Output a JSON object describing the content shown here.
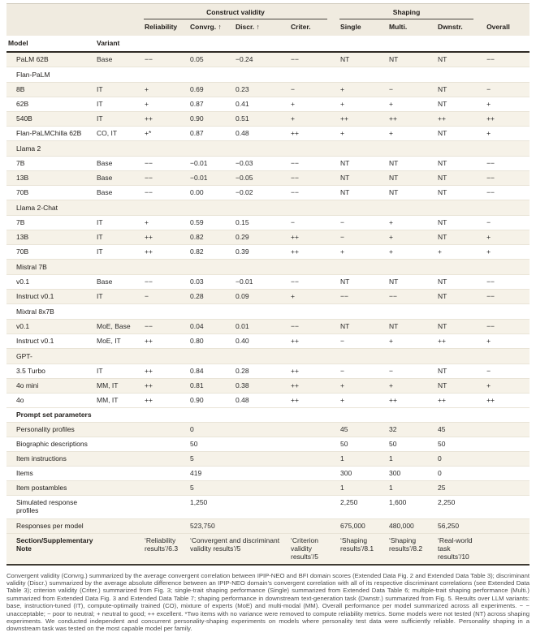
{
  "header": {
    "construct_validity": "Construct validity",
    "shaping": "Shaping",
    "model": "Model",
    "variant": "Variant",
    "cols": [
      "Reliability",
      "Convrg. ↑",
      "Discr. ↑",
      "Criter.",
      "Single",
      "Multi.",
      "Dwnstr.",
      "Overall"
    ]
  },
  "rows": [
    {
      "kind": "data",
      "shaded": true,
      "model": "PaLM 62B",
      "variant": "Base",
      "values": [
        "−−",
        "0.05",
        "−0.24",
        "−−",
        "NT",
        "NT",
        "NT",
        "−−"
      ]
    },
    {
      "kind": "group",
      "shaded": false,
      "label": "Flan-PaLM"
    },
    {
      "kind": "data",
      "shaded": true,
      "model": "8B",
      "variant": "IT",
      "values": [
        "+",
        "0.69",
        "0.23",
        "−",
        "+",
        "−",
        "NT",
        "−"
      ]
    },
    {
      "kind": "data",
      "shaded": false,
      "model": "62B",
      "variant": "IT",
      "values": [
        "+",
        "0.87",
        "0.41",
        "+",
        "+",
        "+",
        "NT",
        "+"
      ]
    },
    {
      "kind": "data",
      "shaded": true,
      "model": "540B",
      "variant": "IT",
      "values": [
        "++",
        "0.90",
        "0.51",
        "+",
        "++",
        "++",
        "++",
        "++"
      ]
    },
    {
      "kind": "data",
      "shaded": false,
      "model": "Flan-PaLMChilla 62B",
      "variant": "CO, IT",
      "values": [
        "+*",
        "0.87",
        "0.48",
        "++",
        "+",
        "+",
        "NT",
        "+"
      ]
    },
    {
      "kind": "group",
      "shaded": true,
      "label": "Llama 2"
    },
    {
      "kind": "data",
      "shaded": false,
      "model": "7B",
      "variant": "Base",
      "values": [
        "−−",
        "−0.01",
        "−0.03",
        "−−",
        "NT",
        "NT",
        "NT",
        "−−"
      ]
    },
    {
      "kind": "data",
      "shaded": true,
      "model": "13B",
      "variant": "Base",
      "values": [
        "−−",
        "−0.01",
        "−0.05",
        "−−",
        "NT",
        "NT",
        "NT",
        "−−"
      ]
    },
    {
      "kind": "data",
      "shaded": false,
      "model": "70B",
      "variant": "Base",
      "values": [
        "−−",
        "0.00",
        "−0.02",
        "−−",
        "NT",
        "NT",
        "NT",
        "−−"
      ]
    },
    {
      "kind": "group",
      "shaded": true,
      "label": "Llama 2-Chat"
    },
    {
      "kind": "data",
      "shaded": false,
      "model": "7B",
      "variant": "IT",
      "values": [
        "+",
        "0.59",
        "0.15",
        "−",
        "−",
        "+",
        "NT",
        "−"
      ]
    },
    {
      "kind": "data",
      "shaded": true,
      "model": "13B",
      "variant": "IT",
      "values": [
        "++",
        "0.82",
        "0.29",
        "++",
        "−",
        "+",
        "NT",
        "+"
      ]
    },
    {
      "kind": "data",
      "shaded": false,
      "model": "70B",
      "variant": "IT",
      "values": [
        "++",
        "0.82",
        "0.39",
        "++",
        "+",
        "+",
        "+",
        "+"
      ]
    },
    {
      "kind": "group",
      "shaded": true,
      "label": "Mistral 7B"
    },
    {
      "kind": "data",
      "shaded": false,
      "model": "v0.1",
      "variant": "Base",
      "values": [
        "−−",
        "0.03",
        "−0.01",
        "−−",
        "NT",
        "NT",
        "NT",
        "−−"
      ]
    },
    {
      "kind": "data",
      "shaded": true,
      "model": "Instruct v0.1",
      "variant": "IT",
      "values": [
        "−",
        "0.28",
        "0.09",
        "+",
        "−−",
        "−−",
        "NT",
        "−−"
      ]
    },
    {
      "kind": "group",
      "shaded": false,
      "label": "Mixtral 8x7B"
    },
    {
      "kind": "data",
      "shaded": true,
      "model": "v0.1",
      "variant": "MoE, Base",
      "values": [
        "−−",
        "0.04",
        "0.01",
        "−−",
        "NT",
        "NT",
        "NT",
        "−−"
      ]
    },
    {
      "kind": "data",
      "shaded": false,
      "model": "Instruct v0.1",
      "variant": "MoE, IT",
      "values": [
        "++",
        "0.80",
        "0.40",
        "++",
        "−",
        "+",
        "++",
        "+"
      ]
    },
    {
      "kind": "group",
      "shaded": true,
      "label": "GPT-"
    },
    {
      "kind": "data",
      "shaded": false,
      "model": "3.5 Turbo",
      "variant": "IT",
      "values": [
        "++",
        "0.84",
        "0.28",
        "++",
        "−",
        "−",
        "NT",
        "−"
      ]
    },
    {
      "kind": "data",
      "shaded": true,
      "model": "4o mini",
      "variant": "MM, IT",
      "values": [
        "++",
        "0.81",
        "0.38",
        "++",
        "+",
        "+",
        "NT",
        "+"
      ]
    },
    {
      "kind": "data",
      "shaded": false,
      "model": "4o",
      "variant": "MM, IT",
      "values": [
        "++",
        "0.90",
        "0.48",
        "++",
        "+",
        "++",
        "++",
        "++"
      ]
    },
    {
      "kind": "section",
      "shaded": false,
      "label": "Prompt set parameters"
    },
    {
      "kind": "params",
      "shaded": true,
      "label": "Personality profiles",
      "values": [
        "0",
        "45",
        "32",
        "45"
      ]
    },
    {
      "kind": "params",
      "shaded": false,
      "label": "Biographic descriptions",
      "values": [
        "50",
        "50",
        "50",
        "50"
      ]
    },
    {
      "kind": "params",
      "shaded": true,
      "label": "Item instructions",
      "values": [
        "5",
        "1",
        "1",
        "0"
      ]
    },
    {
      "kind": "params",
      "shaded": false,
      "label": "Items",
      "values": [
        "419",
        "300",
        "300",
        "0"
      ]
    },
    {
      "kind": "params",
      "shaded": true,
      "label": "Item postambles",
      "values": [
        "5",
        "1",
        "1",
        "25"
      ]
    },
    {
      "kind": "params",
      "shaded": false,
      "label": "Simulated response profiles",
      "values": [
        "1,250",
        "2,250",
        "1,600",
        "2,250"
      ]
    },
    {
      "kind": "params",
      "shaded": true,
      "label": "Responses per model",
      "values": [
        "523,750",
        "675,000",
        "480,000",
        "56,250"
      ]
    },
    {
      "kind": "note",
      "shaded": true,
      "label": "Section/Supplementary Note",
      "values": [
        "‘Reliability results’/6.3",
        "‘Convergent and discriminant validity results’/5",
        "‘Criterion validity results’/5",
        "‘Shaping results’/8.1",
        "‘Shaping results’/8.2",
        "‘Real-world task results’/10"
      ]
    }
  ],
  "caption": "Convergent validity (Convrg.) summarized by the average convergent correlation between IPIP-NEO and BFI domain scores (Extended Data Fig. 2 and Extended Data Table 3); discriminant validity (Discr.) summarized by the average absolute difference between an IPIP-NEO domain’s convergent correlation with all of its respective discriminant correlations (see Extended Data Table 3); criterion validity (Criter.) summarized from Fig. 3; single-trait shaping performance (Single) summarized from Extended Data Table 6; multiple-trait shaping performance (Multi.) summarized from Extended Data Fig. 3 and Extended Data Table 7; shaping performance in downstream text-generation task (Dwnstr.) summarized from Fig. 5. Results over LLM variants: base, instruction-tuned (IT), compute-optimally trained (CO), mixture of experts (MoE) and multi-modal (MM). Overall performance per model summarized across all experiments. − − unacceptable; − poor to neutral; + neutral to good; ++ excellent. *Two items with no variance were removed to compute reliability metrics. Some models were not tested (NT) across shaping experiments. We conducted independent and concurrent personality-shaping experiments on models where personality test data were sufficiently reliable. Personality shaping in a downstream task was tested on the most capable model per family."
}
